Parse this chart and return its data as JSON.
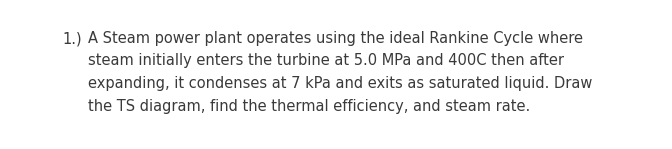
{
  "background_color": "#ffffff",
  "number_label": "1.)",
  "text_lines": [
    "A Steam power plant operates using the ideal Rankine Cycle where",
    "steam initially enters the turbine at 5.0 MPa and 400C then after",
    "expanding, it condenses at 7 kPa and exits as saturated liquid. Draw",
    "the TS diagram, find the thermal efficiency, and steam rate."
  ],
  "font_size": 10.5,
  "font_color": "#3a3a3a",
  "fig_width": 6.72,
  "fig_height": 1.49,
  "dpi": 100
}
